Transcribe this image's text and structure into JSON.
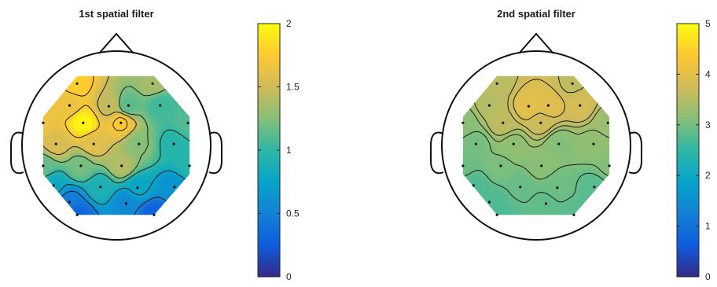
{
  "chart_data": [
    {
      "type": "heatmap",
      "subtype": "scalp topographic map",
      "title": "1st spatial filter",
      "colorbar": {
        "ticks": [
          0,
          0.5,
          1,
          1.5,
          2
        ],
        "tick_labels": [
          "0",
          "0.5",
          "1",
          "1.5",
          "2"
        ],
        "range": [
          0,
          2
        ]
      },
      "colormap": "parula",
      "contour_lines": true,
      "electrodes": [
        {
          "x": -0.52,
          "y": 0.82,
          "v": 1.78
        },
        {
          "x": 0.48,
          "y": 0.82,
          "v": 1.35
        },
        {
          "x": -0.62,
          "y": 0.53,
          "v": 1.65
        },
        {
          "x": -0.1,
          "y": 0.52,
          "v": 1.45
        },
        {
          "x": 0.16,
          "y": 0.53,
          "v": 1.12
        },
        {
          "x": 0.58,
          "y": 0.53,
          "v": 1.05
        },
        {
          "x": -0.97,
          "y": 0.3,
          "v": 1.65
        },
        {
          "x": -0.44,
          "y": 0.3,
          "v": 1.97
        },
        {
          "x": 0.06,
          "y": 0.3,
          "v": 1.75
        },
        {
          "x": 0.95,
          "y": 0.3,
          "v": 1.1
        },
        {
          "x": -0.8,
          "y": 0.02,
          "v": 1.55
        },
        {
          "x": -0.3,
          "y": 0.02,
          "v": 1.58
        },
        {
          "x": 0.3,
          "y": 0.02,
          "v": 1.25
        },
        {
          "x": 0.76,
          "y": 0.02,
          "v": 0.95
        },
        {
          "x": -0.97,
          "y": -0.27,
          "v": 1.15
        },
        {
          "x": -0.47,
          "y": -0.27,
          "v": 1.2
        },
        {
          "x": 0.07,
          "y": -0.27,
          "v": 1.4
        },
        {
          "x": 0.97,
          "y": -0.27,
          "v": 0.95
        },
        {
          "x": -0.83,
          "y": -0.53,
          "v": 0.8
        },
        {
          "x": -0.21,
          "y": -0.55,
          "v": 0.9
        },
        {
          "x": 0.28,
          "y": -0.56,
          "v": 0.78
        },
        {
          "x": 0.77,
          "y": -0.55,
          "v": 0.62
        },
        {
          "x": -0.62,
          "y": -0.75,
          "v": 0.45
        },
        {
          "x": 0.13,
          "y": -0.77,
          "v": 0.55
        },
        {
          "x": -0.52,
          "y": -0.92,
          "v": 0.3
        },
        {
          "x": 0.5,
          "y": -0.92,
          "v": 0.28
        }
      ]
    },
    {
      "type": "heatmap",
      "subtype": "scalp topographic map",
      "title": "2nd spatial filter",
      "colorbar": {
        "ticks": [
          0,
          1,
          2,
          3,
          4,
          5
        ],
        "tick_labels": [
          "0",
          "1",
          "2",
          "3",
          "4",
          "5"
        ],
        "range": [
          0,
          5
        ]
      },
      "colormap": "parula",
      "contour_lines": true,
      "electrodes": [
        {
          "x": -0.52,
          "y": 0.82,
          "v": 3.55
        },
        {
          "x": 0.48,
          "y": 0.82,
          "v": 3.6
        },
        {
          "x": -0.62,
          "y": 0.53,
          "v": 3.5
        },
        {
          "x": -0.1,
          "y": 0.52,
          "v": 4.0
        },
        {
          "x": 0.16,
          "y": 0.53,
          "v": 3.95
        },
        {
          "x": 0.58,
          "y": 0.53,
          "v": 3.8
        },
        {
          "x": -0.97,
          "y": 0.3,
          "v": 3.15
        },
        {
          "x": -0.44,
          "y": 0.3,
          "v": 3.6
        },
        {
          "x": 0.06,
          "y": 0.3,
          "v": 3.7
        },
        {
          "x": 0.95,
          "y": 0.3,
          "v": 3.3
        },
        {
          "x": -0.8,
          "y": 0.02,
          "v": 3.0
        },
        {
          "x": -0.3,
          "y": 0.02,
          "v": 3.2
        },
        {
          "x": 0.3,
          "y": 0.02,
          "v": 3.1
        },
        {
          "x": 0.76,
          "y": 0.02,
          "v": 3.2
        },
        {
          "x": -0.97,
          "y": -0.27,
          "v": 2.95
        },
        {
          "x": -0.47,
          "y": -0.27,
          "v": 3.05
        },
        {
          "x": 0.07,
          "y": -0.27,
          "v": 3.15
        },
        {
          "x": 0.97,
          "y": -0.27,
          "v": 3.1
        },
        {
          "x": -0.83,
          "y": -0.53,
          "v": 2.75
        },
        {
          "x": -0.21,
          "y": -0.55,
          "v": 2.9
        },
        {
          "x": 0.28,
          "y": -0.56,
          "v": 2.95
        },
        {
          "x": 0.77,
          "y": -0.55,
          "v": 2.8
        },
        {
          "x": -0.62,
          "y": -0.75,
          "v": 2.75
        },
        {
          "x": 0.13,
          "y": -0.77,
          "v": 2.85
        },
        {
          "x": -0.52,
          "y": -0.92,
          "v": 2.7
        },
        {
          "x": 0.5,
          "y": -0.92,
          "v": 2.8
        }
      ]
    }
  ]
}
